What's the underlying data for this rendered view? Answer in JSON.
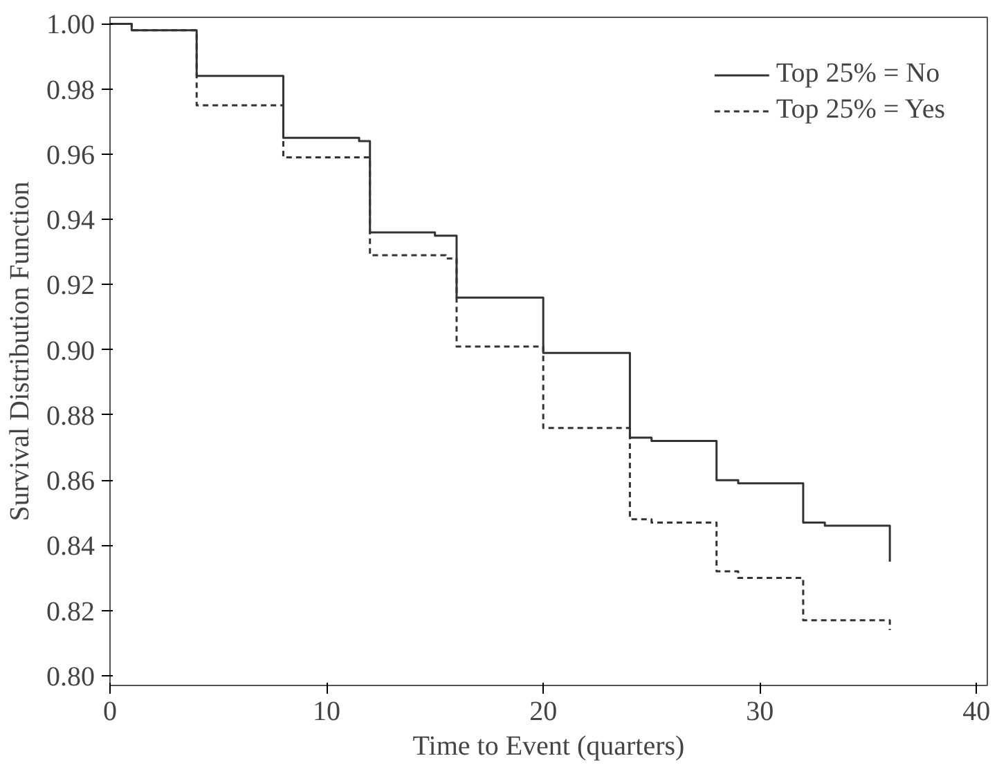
{
  "chart_data": {
    "type": "step",
    "xlabel": "Time to Event (quarters)",
    "ylabel": "Survival Distribution Function",
    "xlim": [
      0,
      40.5
    ],
    "ylim": [
      0.797,
      1.002
    ],
    "xticks": [
      0,
      10,
      20,
      30,
      40
    ],
    "yticks": [
      {
        "value": 0.8,
        "label": "0.80"
      },
      {
        "value": 0.82,
        "label": "0.82"
      },
      {
        "value": 0.84,
        "label": "0.84"
      },
      {
        "value": 0.86,
        "label": "0.86"
      },
      {
        "value": 0.88,
        "label": "0.88"
      },
      {
        "value": 0.9,
        "label": "0.90"
      },
      {
        "value": 0.92,
        "label": "0.92"
      },
      {
        "value": 0.94,
        "label": "0.94"
      },
      {
        "value": 0.96,
        "label": "0.96"
      },
      {
        "value": 0.98,
        "label": "0.98"
      },
      {
        "value": 1.0,
        "label": "1.00"
      }
    ],
    "grid": false,
    "legend": "top right",
    "series": [
      {
        "name": "Top 25% = No",
        "color": "#333333",
        "line_style": "solid",
        "x": [
          0,
          1,
          4,
          8,
          11.5,
          12,
          15,
          16,
          20,
          24,
          25,
          28,
          29,
          32,
          33,
          36,
          36
        ],
        "values": [
          1.0,
          0.998,
          0.984,
          0.965,
          0.964,
          0.936,
          0.935,
          0.916,
          0.899,
          0.873,
          0.872,
          0.86,
          0.859,
          0.847,
          0.846,
          0.845,
          0.835
        ]
      },
      {
        "name": "Top 25% = Yes",
        "color": "#333333",
        "line_style": "dashed",
        "x": [
          0,
          1,
          4,
          8,
          12,
          15.5,
          16,
          20,
          24,
          25,
          28,
          29,
          32,
          36,
          36
        ],
        "values": [
          1.0,
          0.998,
          0.975,
          0.959,
          0.929,
          0.928,
          0.901,
          0.876,
          0.848,
          0.847,
          0.832,
          0.83,
          0.817,
          0.817,
          0.814
        ]
      }
    ]
  }
}
